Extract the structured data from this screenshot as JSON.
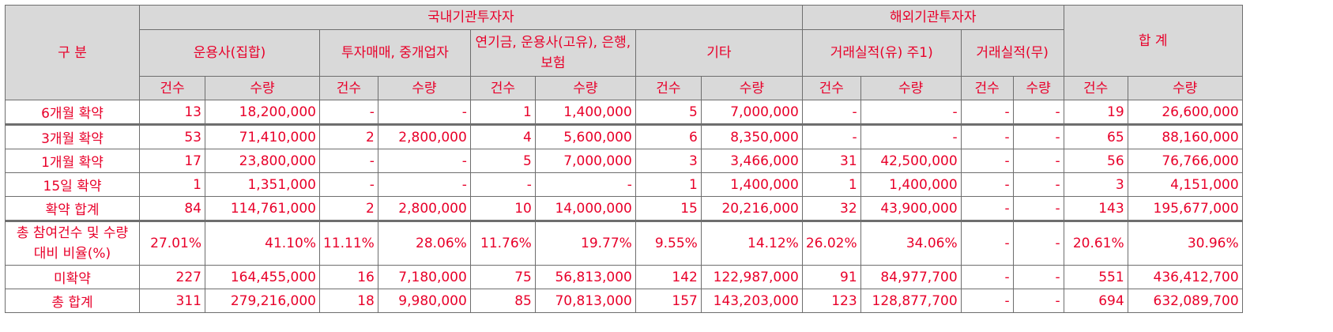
{
  "header": {
    "category": "구 분",
    "domestic": "국내기관투자자",
    "foreign": "해외기관투자자",
    "total": "합 계",
    "groups": [
      "운용사(집합)",
      "투자매매, 중개업자",
      "연기금, 운용사(고유), 은행, 보험",
      "기타",
      "거래실적(유) 주1)",
      "거래실적(무)"
    ],
    "count": "건수",
    "quantity": "수량"
  },
  "rows": [
    {
      "label": "6개월 확약",
      "cells": [
        "13",
        "18,200,000",
        "-",
        "-",
        "1",
        "1,400,000",
        "5",
        "7,000,000",
        "-",
        "-",
        "-",
        "-",
        "19",
        "26,600,000"
      ]
    },
    {
      "label": "3개월 확약",
      "cells": [
        "53",
        "71,410,000",
        "2",
        "2,800,000",
        "4",
        "5,600,000",
        "6",
        "8,350,000",
        "-",
        "-",
        "-",
        "-",
        "65",
        "88,160,000"
      ]
    },
    {
      "label": "1개월 확약",
      "cells": [
        "17",
        "23,800,000",
        "-",
        "-",
        "5",
        "7,000,000",
        "3",
        "3,466,000",
        "31",
        "42,500,000",
        "-",
        "-",
        "56",
        "76,766,000"
      ]
    },
    {
      "label": "15일 확약",
      "cells": [
        "1",
        "1,351,000",
        "-",
        "-",
        "-",
        "-",
        "1",
        "1,400,000",
        "1",
        "1,400,000",
        "-",
        "-",
        "3",
        "4,151,000"
      ]
    },
    {
      "label": "확약 합계",
      "cells": [
        "84",
        "114,761,000",
        "2",
        "2,800,000",
        "10",
        "14,000,000",
        "15",
        "20,216,000",
        "32",
        "43,900,000",
        "-",
        "-",
        "143",
        "195,677,000"
      ]
    },
    {
      "label": "총 참여건수 및 수량 대비 비율(%)",
      "cells": [
        "27.01%",
        "41.10%",
        "11.11%",
        "28.06%",
        "11.76%",
        "19.77%",
        "9.55%",
        "14.12%",
        "26.02%",
        "34.06%",
        "-",
        "-",
        "20.61%",
        "30.96%"
      ]
    },
    {
      "label": "미확약",
      "cells": [
        "227",
        "164,455,000",
        "16",
        "7,180,000",
        "75",
        "56,813,000",
        "142",
        "122,987,000",
        "91",
        "84,977,700",
        "-",
        "-",
        "551",
        "436,412,700"
      ]
    },
    {
      "label": "총 합계",
      "cells": [
        "311",
        "279,216,000",
        "18",
        "9,980,000",
        "85",
        "70,813,000",
        "157",
        "143,203,000",
        "123",
        "128,877,700",
        "-",
        "-",
        "694",
        "632,089,700"
      ]
    }
  ]
}
